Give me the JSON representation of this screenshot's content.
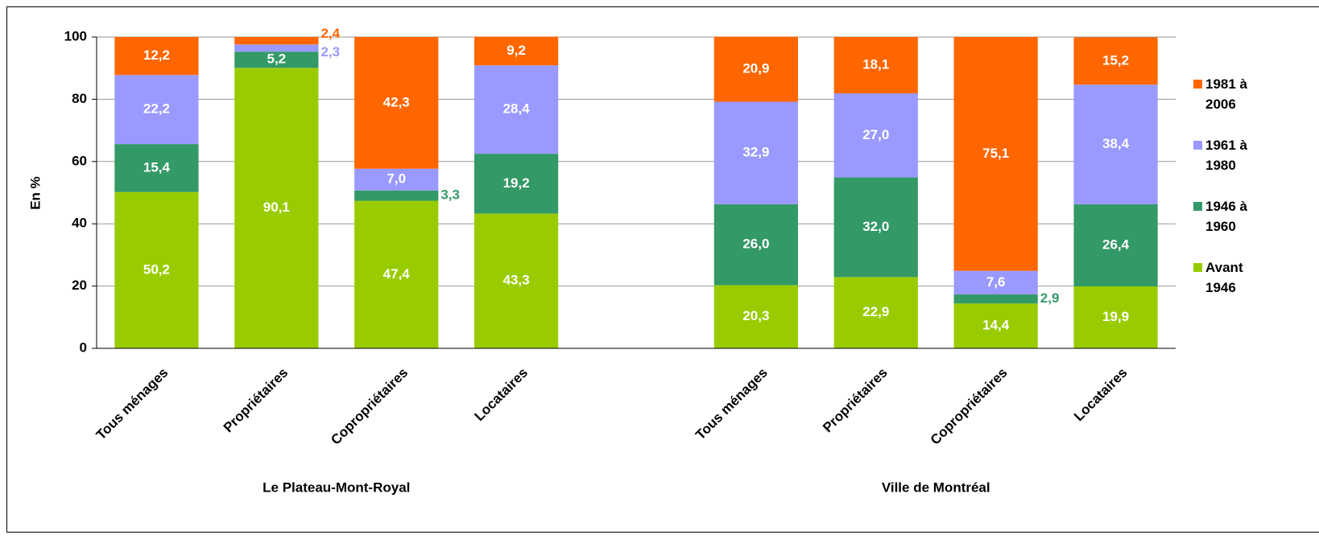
{
  "chart_data": {
    "type": "stacked_bar",
    "ylabel": "En %",
    "categories": [
      "Tous ménages",
      "Propriétaires",
      "Copropriétaires",
      "Locataires",
      null,
      "Tous ménages",
      "Propriétaires",
      "Copropriétaires",
      "Locataires"
    ],
    "groups": [
      {
        "label": "Le Plateau-Mont-Royal",
        "from": 0,
        "to": 3
      },
      {
        "label": "Ville de Montréal",
        "from": 5,
        "to": 8
      }
    ],
    "series": [
      {
        "name": "Avant 1946",
        "color": "#99cc00",
        "values": [
          50.2,
          90.1,
          47.4,
          43.3,
          null,
          20.3,
          22.9,
          14.4,
          19.9
        ],
        "value_labels": [
          "50,2",
          "90,1",
          "47,4",
          "43,3",
          null,
          "20,3",
          "22,9",
          "14,4",
          "19,9"
        ]
      },
      {
        "name": "1946 à 1960",
        "color": "#339966",
        "values": [
          15.4,
          5.2,
          3.3,
          19.2,
          null,
          26.0,
          32.0,
          2.9,
          26.4
        ],
        "value_labels": [
          "15,4",
          "5,2",
          "3,3",
          "19,2",
          null,
          "26,0",
          "32,0",
          "2,9",
          "26,4"
        ]
      },
      {
        "name": "1961 à 1980",
        "color": "#9999ff",
        "values": [
          22.2,
          2.3,
          7.0,
          28.4,
          null,
          32.9,
          27.0,
          7.6,
          38.4
        ],
        "value_labels": [
          "22,2",
          "2,3",
          "7,0",
          "28,4",
          null,
          "32,9",
          "27,0",
          "7,6",
          "38,4"
        ]
      },
      {
        "name": "1981 à 2006",
        "color": "#ff6600",
        "values": [
          12.2,
          2.4,
          42.3,
          9.2,
          null,
          20.9,
          18.1,
          75.1,
          15.2
        ],
        "value_labels": [
          "12,2",
          "2,4",
          "42,3",
          "9,2",
          null,
          "20,9",
          "18,1",
          "75,1",
          "15,2"
        ]
      }
    ],
    "ylim": [
      0,
      100
    ],
    "yticks": [
      0,
      20,
      40,
      60,
      80,
      100
    ],
    "grid": true,
    "legend": "right"
  }
}
